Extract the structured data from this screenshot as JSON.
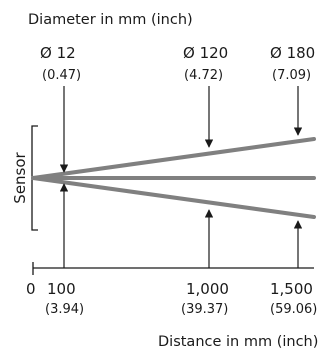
{
  "diagram": {
    "top_title": "Diameter in mm (inch)",
    "bottom_title": "Distance in mm (inch)",
    "sensor_label": "Sensor",
    "diameters": [
      {
        "label": "Ø 12",
        "inch": "(0.47)"
      },
      {
        "label": "Ø 120",
        "inch": "(4.72)"
      },
      {
        "label": "Ø 180",
        "inch": "(7.09)"
      }
    ],
    "distance_zero": "0",
    "distances": [
      {
        "label": "100",
        "inch": "(3.94)"
      },
      {
        "label": "1,000",
        "inch": "(39.37)"
      },
      {
        "label": "1,500",
        "inch": "(59.06)"
      }
    ],
    "beam_color": "#808080",
    "line_color": "#1a1a1a"
  }
}
